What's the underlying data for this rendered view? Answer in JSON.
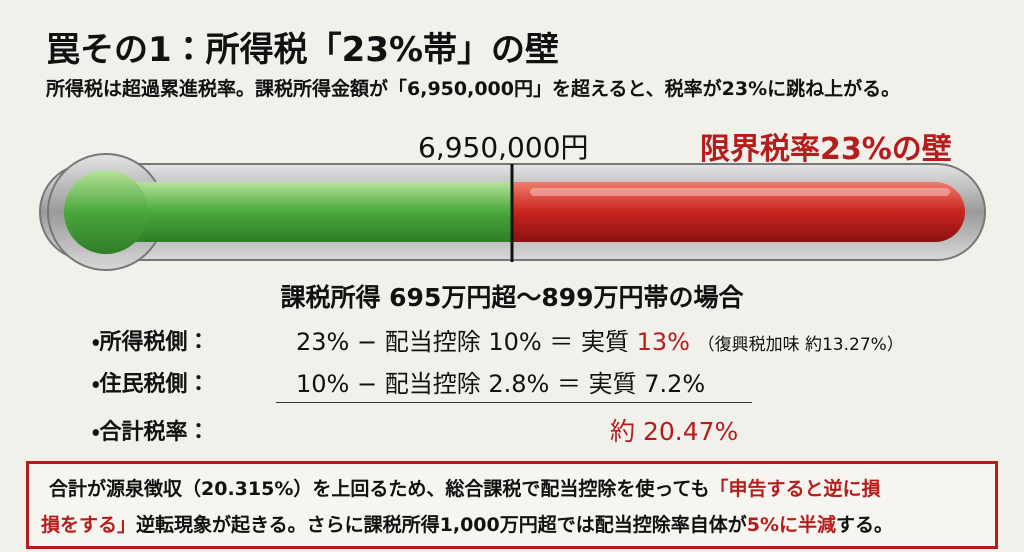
{
  "header": {
    "title": "罠その1：所得税「23%帯」の壁",
    "subtitle": "所得税は超過累進税率。課税所得金額が「6,950,000円」を超えると、税率が23%に跳ね上がる。"
  },
  "gauge": {
    "threshold_label": "6,950,000円",
    "danger_label": "限界税率23%の壁"
  },
  "case": {
    "title": "課税所得 695万円超～899万円帯の場合",
    "rows": [
      {
        "label": "・所得税側：",
        "formula": "23% − 配当控除 10% ＝ 実質",
        "result": "13%",
        "note": "（復興税加味 約13.27%）"
      },
      {
        "label": "・住民税側：",
        "formula": "10% − 配当控除 2.8% ＝ 実質 7.2%"
      },
      {
        "label": "・合計税率：",
        "result": "約 20.47%"
      }
    ]
  },
  "note": {
    "lines": [
      [
        "合計が源泉徴収（20.315%）を上回るため、総合課税で配当控除を使っても",
        "「申告すると逆に損"
      ],
      [
        "損をする」",
        "逆転現象が起きる。さらに課税所得1,000万円超では配当控除率自体が",
        "5%に半減",
        "する。"
      ]
    ]
  }
}
